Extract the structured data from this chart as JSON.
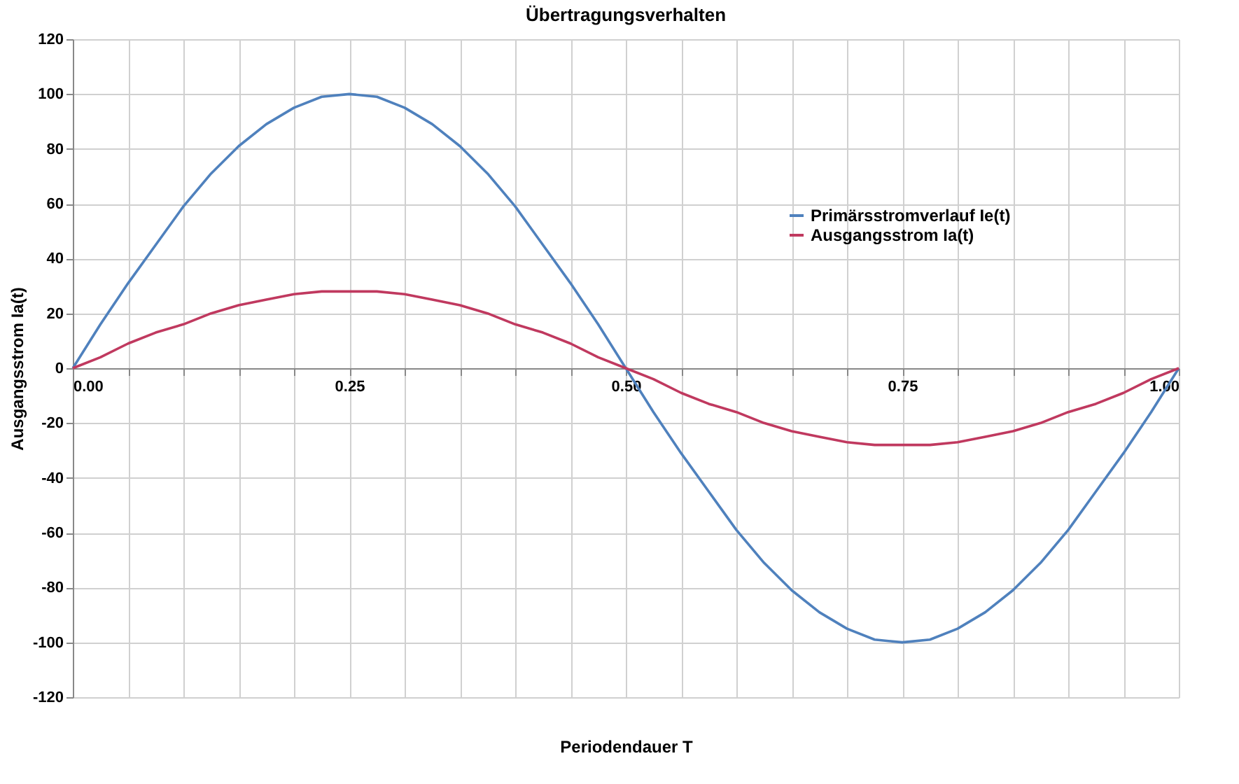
{
  "chart_data": {
    "type": "line",
    "title": "Übertragungsverhalten",
    "xlabel": "Periodendauer T",
    "ylabel": "Ausgangsstrom  Ia(t)",
    "x": [
      0,
      0.025,
      0.05,
      0.075,
      0.1,
      0.125,
      0.15,
      0.175,
      0.2,
      0.225,
      0.25,
      0.275,
      0.3,
      0.325,
      0.35,
      0.375,
      0.4,
      0.425,
      0.45,
      0.475,
      0.5,
      0.525,
      0.55,
      0.575,
      0.6,
      0.625,
      0.65,
      0.675,
      0.7,
      0.725,
      0.75,
      0.775,
      0.8,
      0.825,
      0.85,
      0.875,
      0.9,
      0.925,
      0.95,
      0.975,
      1
    ],
    "series": [
      {
        "name": "Primärsstromverlauf Ie(t)",
        "color": "#4f81bd",
        "values": [
          0,
          16,
          31,
          45,
          59,
          71,
          81,
          89,
          95,
          99,
          100,
          99,
          95,
          89,
          81,
          71,
          59,
          45,
          31,
          16,
          0,
          -16,
          -31,
          -45,
          -59,
          -71,
          -81,
          -89,
          -95,
          -99,
          -100,
          -99,
          -95,
          -89,
          -81,
          -71,
          -59,
          -45,
          -31,
          -16,
          0
        ]
      },
      {
        "name": "Ausgangsstrom Ia(t)",
        "color": "#c0395f",
        "values": [
          0,
          4,
          9,
          13,
          16,
          20,
          23,
          25,
          27,
          28,
          28,
          28,
          27,
          25,
          23,
          20,
          16,
          13,
          9,
          4,
          0,
          -4,
          -9,
          -13,
          -16,
          -20,
          -23,
          -25,
          -27,
          -28,
          -28,
          -28,
          -27,
          -25,
          -23,
          -20,
          -16,
          -13,
          -9,
          -4,
          0
        ]
      }
    ],
    "xlim": [
      0,
      1
    ],
    "xticks": [
      {
        "value": 0,
        "label": "0.00"
      },
      {
        "value": 0.05,
        "label": null
      },
      {
        "value": 0.1,
        "label": null
      },
      {
        "value": 0.15,
        "label": null
      },
      {
        "value": 0.2,
        "label": null
      },
      {
        "value": 0.25,
        "label": "0.25"
      },
      {
        "value": 0.3,
        "label": null
      },
      {
        "value": 0.35,
        "label": null
      },
      {
        "value": 0.4,
        "label": null
      },
      {
        "value": 0.45,
        "label": null
      },
      {
        "value": 0.5,
        "label": "0.50"
      },
      {
        "value": 0.55,
        "label": null
      },
      {
        "value": 0.6,
        "label": null
      },
      {
        "value": 0.65,
        "label": null
      },
      {
        "value": 0.7,
        "label": null
      },
      {
        "value": 0.75,
        "label": "0.75"
      },
      {
        "value": 0.8,
        "label": null
      },
      {
        "value": 0.85,
        "label": null
      },
      {
        "value": 0.9,
        "label": null
      },
      {
        "value": 0.95,
        "label": null
      },
      {
        "value": 1,
        "label": "1.00"
      }
    ],
    "ylim": [
      -120,
      120
    ],
    "yticks": [
      -120,
      -100,
      -80,
      -60,
      -40,
      -20,
      0,
      20,
      40,
      60,
      80,
      100,
      120
    ],
    "grid": true,
    "legend": "top right",
    "marker": "none",
    "line_style": "solid"
  }
}
